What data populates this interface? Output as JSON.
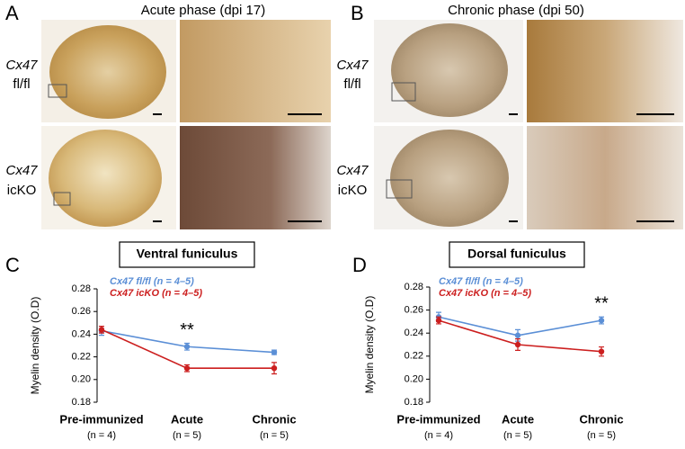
{
  "panels": [
    {
      "label": "A",
      "title": "Acute phase (dpi 17)",
      "rows": [
        {
          "gene": "Cx47",
          "genotype": "fl/fl"
        },
        {
          "gene": "Cx47",
          "genotype": "icKO"
        }
      ]
    },
    {
      "label": "B",
      "title": "Chronic phase (dpi 50)",
      "rows": [
        {
          "gene": "Cx47",
          "genotype": "fl/fl"
        },
        {
          "gene": "Cx47",
          "genotype": "icKO"
        }
      ]
    }
  ],
  "chart_data": [
    {
      "type": "line",
      "panel": "C",
      "title": "Ventral funiculus",
      "ylabel": "Myelin density (O.D)",
      "categories": [
        "Pre-immunized",
        "Acute",
        "Chronic"
      ],
      "category_notes": [
        "(n = 4)",
        "(n = 5)",
        "(n = 5)"
      ],
      "ylim": [
        0.18,
        0.28
      ],
      "yticks": [
        {
          "value": 0.18,
          "label": "0.18"
        },
        {
          "value": 0.2,
          "label": "0.20"
        },
        {
          "value": 0.22,
          "label": "0.22"
        },
        {
          "value": 0.24,
          "label": "0.24"
        },
        {
          "value": 0.26,
          "label": "0.26"
        },
        {
          "value": 0.28,
          "label": "0.28"
        }
      ],
      "series": [
        {
          "name": "Cx47 fl/fl (n = 4–5)",
          "color": "#5b8fd6",
          "values": [
            0.243,
            0.229,
            0.224
          ],
          "errors": [
            0.004,
            0.003,
            0.002
          ]
        },
        {
          "name": "Cx47 icKO (n = 4–5)",
          "color": "#cc1f1f",
          "values": [
            0.244,
            0.21,
            0.21
          ],
          "errors": [
            0.003,
            0.003,
            0.005
          ]
        }
      ],
      "annotations": [
        {
          "text": "**",
          "x": "Acute"
        }
      ]
    },
    {
      "type": "line",
      "panel": "D",
      "title": "Dorsal funiculus",
      "ylabel": "Myelin density (O.D)",
      "categories": [
        "Pre-immunized",
        "Acute",
        "Chronic"
      ],
      "category_notes": [
        "(n = 4)",
        "(n = 5)",
        "(n = 5)"
      ],
      "ylim": [
        0.18,
        0.28
      ],
      "yticks": [
        {
          "value": 0.18,
          "label": "0.18"
        },
        {
          "value": 0.2,
          "label": "0.20"
        },
        {
          "value": 0.22,
          "label": "0.22"
        },
        {
          "value": 0.24,
          "label": "0.24"
        },
        {
          "value": 0.26,
          "label": "0.26"
        },
        {
          "value": 0.28,
          "label": "0.28"
        }
      ],
      "series": [
        {
          "name": "Cx47 fl/fl (n = 4–5)",
          "color": "#5b8fd6",
          "values": [
            0.254,
            0.238,
            0.251
          ],
          "errors": [
            0.004,
            0.005,
            0.003
          ]
        },
        {
          "name": "Cx47 icKO (n = 4–5)",
          "color": "#cc1f1f",
          "values": [
            0.251,
            0.23,
            0.224
          ],
          "errors": [
            0.003,
            0.005,
            0.004
          ]
        }
      ],
      "annotations": [
        {
          "text": "**",
          "x": "Chronic"
        }
      ]
    }
  ]
}
